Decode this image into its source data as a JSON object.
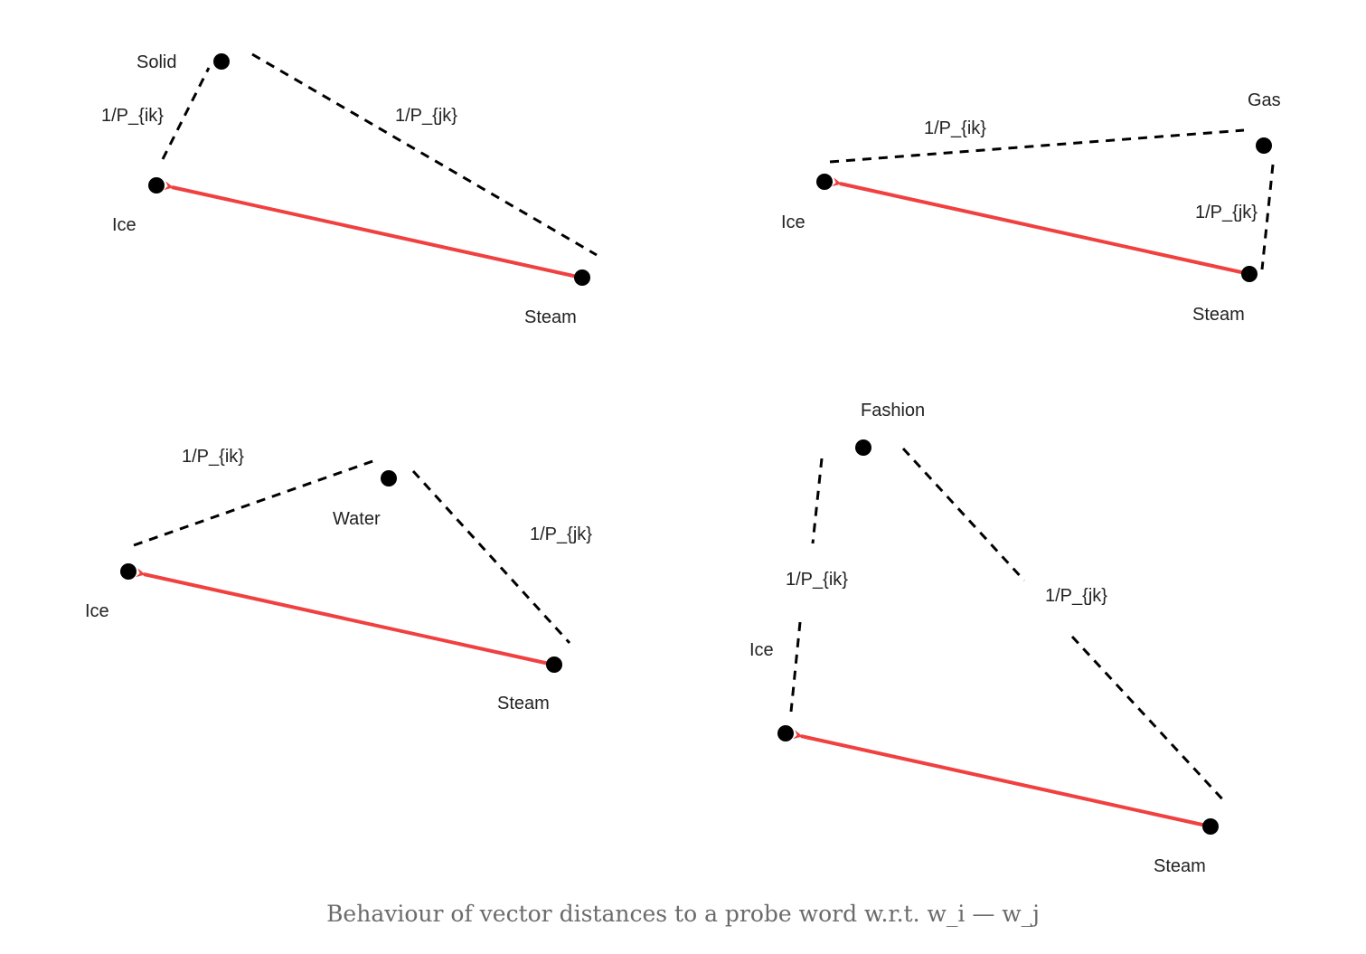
{
  "colors": {
    "arrow": "#f04040",
    "dashed": "#000000",
    "node": "#000000",
    "text": "#222222",
    "caption": "#6b6b6b"
  },
  "panels": [
    {
      "nodes": {
        "probe": "Solid",
        "ice": "Ice",
        "steam": "Steam"
      },
      "edges": {
        "ik": "1/P_{ik}",
        "jk": "1/P_{jk}"
      }
    },
    {
      "nodes": {
        "probe": "Gas",
        "ice": "Ice",
        "steam": "Steam"
      },
      "edges": {
        "ik": "1/P_{ik}",
        "jk": "1/P_{jk}"
      }
    },
    {
      "nodes": {
        "probe": "Water",
        "ice": "Ice",
        "steam": "Steam"
      },
      "edges": {
        "ik": "1/P_{ik}",
        "jk": "1/P_{jk}"
      }
    },
    {
      "nodes": {
        "probe": "Fashion",
        "ice": "Ice",
        "steam": "Steam"
      },
      "edges": {
        "ik": "1/P_{ik}",
        "jk": "1/P_{jk}"
      }
    }
  ],
  "caption": "Behaviour of vector distances to a probe word w.r.t. w_i — w_j"
}
